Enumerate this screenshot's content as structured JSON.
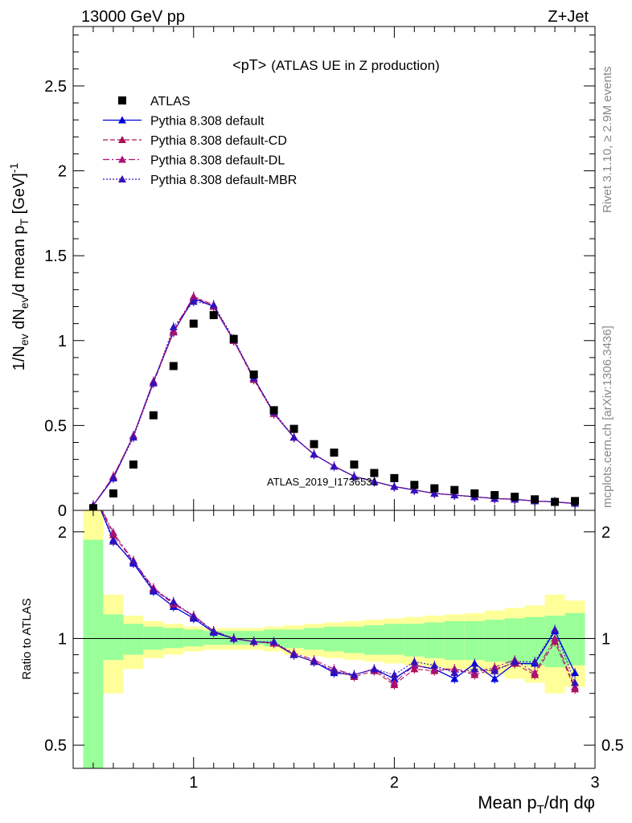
{
  "header": {
    "left": "13000 GeV pp",
    "right": "Z+Jet"
  },
  "side_labels": {
    "rivet": "Rivet 3.1.10, ≥ 2.9M events",
    "mcplots": "mcplots.cern.ch [arXiv:1306.3436]"
  },
  "watermark": "ATLAS_2019_I1736531",
  "plot_title": {
    "main": "<pT>",
    "sub": "(ATLAS UE in Z production)"
  },
  "axes": {
    "ylabel_main": "1/N_ev dN_ev/d mean p_T [GeV]^-1",
    "ylabel_main_parts": {
      "a": "1/N",
      "a_sub": "ev",
      "b": " dN",
      "b_sub": "ev",
      "c": "/d mean p",
      "c_sub": "T",
      "d": " [GeV]",
      "d_sup": "-1"
    },
    "ylabel_ratio": "Ratio to ATLAS",
    "xlabel": "Mean p_T/dη dφ",
    "xlabel_parts": {
      "a": "Mean p",
      "a_sub": "T",
      "b": "/dη dφ"
    }
  },
  "colors": {
    "atlas": "#000000",
    "default": "#0000dd",
    "cd": "#aa1155",
    "dl": "#aa1177",
    "mbr": "#3311bb",
    "band_inner": "#99ff99",
    "band_outer": "#ffff99"
  },
  "chart_data": [
    {
      "type": "scatter",
      "panel": "main",
      "title": "<pT> (ATLAS UE in Z production)",
      "xlabel": "Mean p_T/dη dφ",
      "ylabel": "1/N_ev dN_ev/d mean p_T [GeV]^-1",
      "xlim": [
        0.4,
        3.0
      ],
      "ylim": [
        0,
        2.85
      ],
      "xticks": [
        1,
        2,
        3
      ],
      "yticks": [
        0,
        0.5,
        1,
        1.5,
        2,
        2.5
      ],
      "ytick_labels": [
        "0",
        "0.5",
        "1",
        "1.5",
        "2",
        "2.5"
      ],
      "legend_position": "top-left",
      "x": [
        0.5,
        0.6,
        0.7,
        0.8,
        0.9,
        1.0,
        1.1,
        1.2,
        1.3,
        1.4,
        1.5,
        1.6,
        1.7,
        1.8,
        1.9,
        2.0,
        2.1,
        2.2,
        2.3,
        2.4,
        2.5,
        2.6,
        2.7,
        2.8,
        2.9
      ],
      "series": [
        {
          "name": "ATLAS",
          "style": "square",
          "values": [
            0.013,
            0.1,
            0.27,
            0.56,
            0.85,
            1.1,
            1.15,
            1.01,
            0.8,
            0.59,
            0.48,
            0.39,
            0.34,
            0.27,
            0.22,
            0.19,
            0.15,
            0.13,
            0.12,
            0.1,
            0.09,
            0.08,
            0.065,
            0.05,
            0.055
          ]
        },
        {
          "name": "Pythia 8.308 default",
          "style": "solid",
          "values": [
            0.03,
            0.19,
            0.44,
            0.76,
            1.05,
            1.25,
            1.2,
            1.0,
            0.78,
            0.57,
            0.43,
            0.33,
            0.26,
            0.2,
            0.17,
            0.14,
            0.12,
            0.1,
            0.09,
            0.08,
            0.07,
            0.065,
            0.055,
            0.05,
            0.04
          ]
        },
        {
          "name": "Pythia 8.308 default-CD",
          "style": "dashed",
          "values": [
            0.03,
            0.2,
            0.44,
            0.75,
            1.05,
            1.26,
            1.2,
            1.0,
            0.77,
            0.57,
            0.43,
            0.33,
            0.26,
            0.2,
            0.17,
            0.14,
            0.12,
            0.1,
            0.09,
            0.08,
            0.07,
            0.065,
            0.055,
            0.05,
            0.04
          ]
        },
        {
          "name": "Pythia 8.308 default-DL",
          "style": "dashdot",
          "values": [
            0.03,
            0.2,
            0.44,
            0.76,
            1.06,
            1.26,
            1.21,
            1.0,
            0.78,
            0.57,
            0.43,
            0.33,
            0.26,
            0.2,
            0.17,
            0.14,
            0.12,
            0.1,
            0.09,
            0.08,
            0.07,
            0.065,
            0.055,
            0.05,
            0.04
          ]
        },
        {
          "name": "Pythia 8.308 default-MBR",
          "style": "dotted",
          "values": [
            0.03,
            0.19,
            0.43,
            0.75,
            1.08,
            1.23,
            1.21,
            1.01,
            0.78,
            0.58,
            0.43,
            0.33,
            0.26,
            0.2,
            0.17,
            0.14,
            0.12,
            0.1,
            0.09,
            0.08,
            0.07,
            0.065,
            0.055,
            0.05,
            0.04
          ]
        }
      ]
    },
    {
      "type": "line",
      "panel": "ratio",
      "ylabel": "Ratio to ATLAS",
      "xlabel": "Mean p_T/dη dφ",
      "xlim": [
        0.4,
        3.0
      ],
      "ylim": [
        0.43,
        2.3
      ],
      "log_y": true,
      "yticks": [
        0.5,
        1,
        2
      ],
      "ytick_labels": [
        "0.5",
        "1",
        "2"
      ],
      "xticks": [
        1,
        2,
        3
      ],
      "xtick_labels": [
        "1",
        "2",
        "3"
      ],
      "x": [
        0.5,
        0.6,
        0.7,
        0.8,
        0.9,
        1.0,
        1.1,
        1.2,
        1.3,
        1.4,
        1.5,
        1.6,
        1.7,
        1.8,
        1.9,
        2.0,
        2.1,
        2.2,
        2.3,
        2.4,
        2.5,
        2.6,
        2.7,
        2.8,
        2.9
      ],
      "bands": {
        "inner_lo": [
          0.3,
          0.87,
          0.9,
          0.93,
          0.94,
          0.95,
          0.96,
          0.96,
          0.96,
          0.95,
          0.94,
          0.93,
          0.92,
          0.91,
          0.9,
          0.9,
          0.89,
          0.88,
          0.87,
          0.87,
          0.86,
          0.85,
          0.84,
          0.83,
          0.84
        ],
        "inner_hi": [
          1.9,
          1.17,
          1.1,
          1.08,
          1.07,
          1.06,
          1.05,
          1.05,
          1.05,
          1.06,
          1.06,
          1.07,
          1.08,
          1.08,
          1.09,
          1.1,
          1.1,
          1.11,
          1.12,
          1.12,
          1.13,
          1.14,
          1.15,
          1.16,
          1.18
        ],
        "outer_lo": [
          0.3,
          0.7,
          0.82,
          0.88,
          0.9,
          0.92,
          0.93,
          0.93,
          0.93,
          0.92,
          0.9,
          0.89,
          0.88,
          0.87,
          0.86,
          0.85,
          0.84,
          0.83,
          0.82,
          0.81,
          0.79,
          0.77,
          0.75,
          0.7,
          0.73
        ],
        "outer_hi": [
          3.0,
          1.33,
          1.16,
          1.12,
          1.1,
          1.08,
          1.07,
          1.07,
          1.07,
          1.08,
          1.09,
          1.1,
          1.11,
          1.12,
          1.13,
          1.14,
          1.15,
          1.16,
          1.17,
          1.18,
          1.2,
          1.22,
          1.24,
          1.33,
          1.28
        ]
      },
      "series": [
        {
          "name": "Pythia 8.308 default",
          "style": "solid",
          "values": [
            2.6,
            1.9,
            1.63,
            1.36,
            1.23,
            1.14,
            1.04,
            1.0,
            0.98,
            0.97,
            0.9,
            0.86,
            0.8,
            0.79,
            0.82,
            0.77,
            0.84,
            0.82,
            0.77,
            0.85,
            0.77,
            0.85,
            0.85,
            1.05,
            0.8
          ]
        },
        {
          "name": "Pythia 8.308 default-CD",
          "style": "dashed",
          "values": [
            2.6,
            1.96,
            1.65,
            1.38,
            1.25,
            1.16,
            1.05,
            1.0,
            0.98,
            0.97,
            0.9,
            0.86,
            0.81,
            0.78,
            0.81,
            0.74,
            0.82,
            0.81,
            0.82,
            0.79,
            0.82,
            0.85,
            0.79,
            0.98,
            0.72
          ]
        },
        {
          "name": "Pythia 8.308 default-DL",
          "style": "dashdot",
          "values": [
            2.6,
            1.99,
            1.66,
            1.39,
            1.26,
            1.16,
            1.05,
            1.0,
            0.98,
            0.97,
            0.91,
            0.87,
            0.82,
            0.79,
            0.82,
            0.75,
            0.84,
            0.82,
            0.82,
            0.8,
            0.83,
            0.87,
            0.8,
            1.0,
            0.73
          ]
        },
        {
          "name": "Pythia 8.308 default-MBR",
          "style": "dotted",
          "values": [
            2.6,
            1.88,
            1.65,
            1.37,
            1.27,
            1.15,
            1.05,
            1.0,
            0.98,
            0.98,
            0.9,
            0.86,
            0.81,
            0.79,
            0.82,
            0.79,
            0.86,
            0.84,
            0.8,
            0.82,
            0.81,
            0.86,
            0.86,
            1.06,
            0.75
          ]
        }
      ]
    }
  ]
}
